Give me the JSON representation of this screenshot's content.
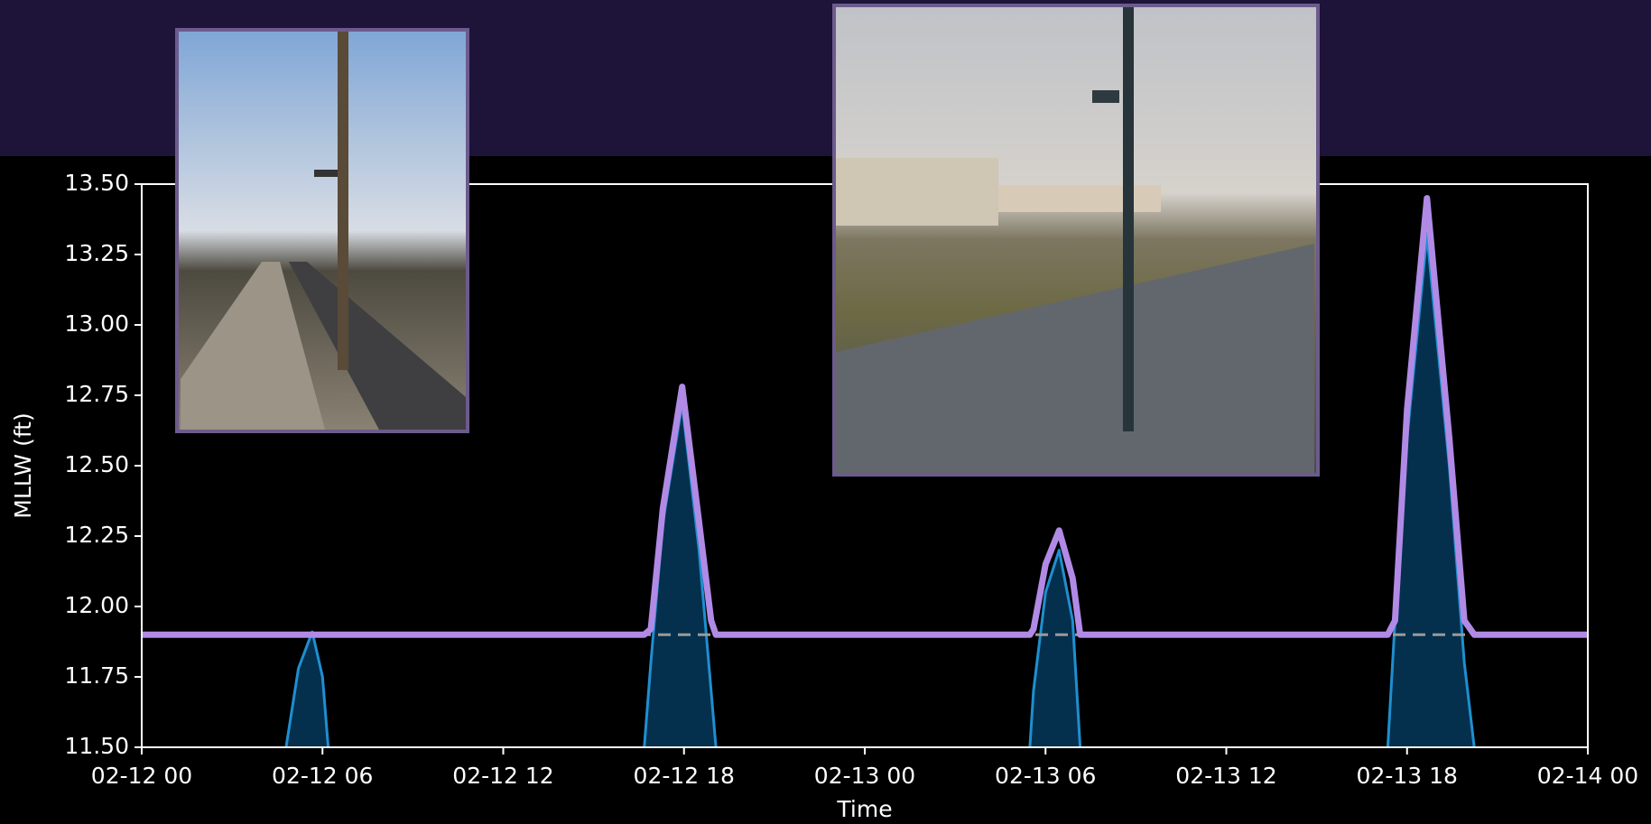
{
  "chart_data": {
    "type": "line",
    "xlabel": "Time",
    "ylabel": "MLLW (ft)",
    "xlim": [
      0,
      48
    ],
    "xticks": [
      {
        "value": 0,
        "label": "02-12 00"
      },
      {
        "value": 6,
        "label": "02-12 06"
      },
      {
        "value": 12,
        "label": "02-12 12"
      },
      {
        "value": 18,
        "label": "02-12 18"
      },
      {
        "value": 24,
        "label": "02-13 00"
      },
      {
        "value": 30,
        "label": "02-13 06"
      },
      {
        "value": 36,
        "label": "02-13 12"
      },
      {
        "value": 42,
        "label": "02-13 18"
      },
      {
        "value": 48,
        "label": "02-14 00"
      }
    ],
    "ylim": [
      11.5,
      13.5
    ],
    "yticks": [
      {
        "value": 11.5,
        "label": "11.50"
      },
      {
        "value": 11.75,
        "label": "11.75"
      },
      {
        "value": 12,
        "label": "12.00"
      },
      {
        "value": 12.25,
        "label": "12.25"
      },
      {
        "value": 12.5,
        "label": "12.50"
      },
      {
        "value": 12.75,
        "label": "12.75"
      },
      {
        "value": 13,
        "label": "13.00"
      },
      {
        "value": 13.25,
        "label": "13.25"
      },
      {
        "value": 13.5,
        "label": "13.50"
      }
    ],
    "threshold": 11.9,
    "threshold_color": "#9a9a9a",
    "x": [
      0,
      4.79,
      5.2,
      5.66,
      6.0,
      6.19,
      12,
      16.68,
      16.9,
      17.3,
      17.94,
      18.5,
      18.9,
      19.06,
      24,
      29.48,
      29.6,
      30.0,
      30.45,
      30.9,
      31.15,
      36,
      41.36,
      41.6,
      42.0,
      42.66,
      43.4,
      43.9,
      44.23,
      48
    ],
    "series": [
      {
        "color": "#1f8fd0",
        "fill": "#05304d",
        "values": [
          null,
          11.5,
          11.78,
          11.91,
          11.75,
          11.5,
          null,
          11.5,
          11.8,
          12.3,
          12.72,
          12.2,
          11.7,
          11.5,
          null,
          11.5,
          11.7,
          12.05,
          12.2,
          11.95,
          11.5,
          null,
          11.5,
          11.95,
          12.6,
          13.32,
          12.5,
          11.8,
          11.5,
          null
        ]
      },
      {
        "color": "#b18ae6",
        "values": [
          11.9,
          11.9,
          11.9,
          11.9,
          11.9,
          11.9,
          11.9,
          11.9,
          11.92,
          12.35,
          12.78,
          12.3,
          11.95,
          11.9,
          11.9,
          11.9,
          11.92,
          12.15,
          12.27,
          12.1,
          11.9,
          11.9,
          11.9,
          11.95,
          12.7,
          13.45,
          12.6,
          11.95,
          11.9,
          11.9
        ]
      }
    ]
  }
}
